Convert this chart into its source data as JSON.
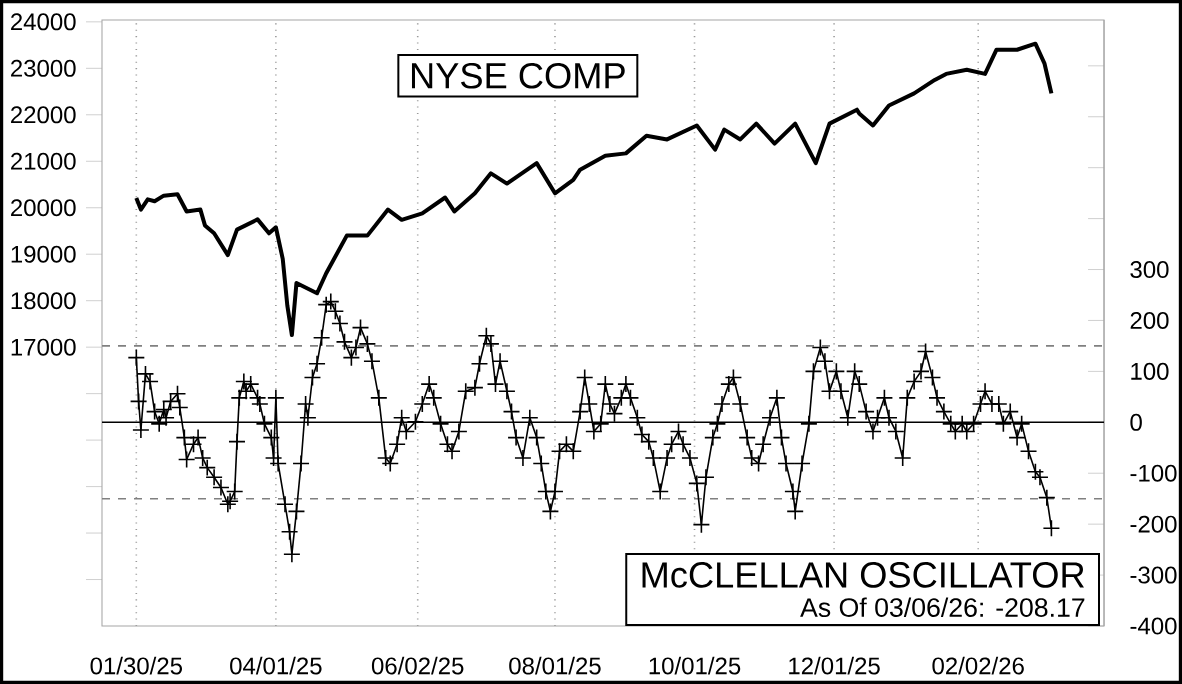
{
  "chart_data": {
    "type": "line",
    "xlim": [
      "2025-01-15",
      "2026-03-29"
    ],
    "xticks": [
      {
        "value": "2025-01-30",
        "label": "01/30/25"
      },
      {
        "value": "2025-04-01",
        "label": "04/01/25"
      },
      {
        "value": "2025-06-02",
        "label": "06/02/25"
      },
      {
        "value": "2025-08-01",
        "label": "08/01/25"
      },
      {
        "value": "2025-10-01",
        "label": "10/01/25"
      },
      {
        "value": "2025-12-01",
        "label": "12/01/25"
      },
      {
        "value": "2026-02-02",
        "label": "02/02/26"
      }
    ],
    "ylim": [
      11000,
      24040
    ],
    "yticks": [
      {
        "value": 12000,
        "label": null
      },
      {
        "value": 13000,
        "label": null
      },
      {
        "value": 14000,
        "label": null
      },
      {
        "value": 15000,
        "label": null
      },
      {
        "value": 16000,
        "label": null
      },
      17000,
      18000,
      19000,
      20000,
      21000,
      22000,
      23000,
      24000
    ],
    "y2lim": [
      -400,
      790
    ],
    "y2ticks": [
      -400,
      -300,
      -200,
      -100,
      0,
      100,
      200,
      300,
      {
        "value": 400,
        "label": null
      },
      {
        "value": 500,
        "label": null
      },
      {
        "value": 600,
        "label": null
      },
      {
        "value": 700,
        "label": null
      }
    ],
    "grid": "x",
    "ref_lines": [
      {
        "axis": "y2",
        "value": 150,
        "color": "#808080",
        "line_style": "dashed"
      },
      {
        "axis": "y2",
        "value": 0,
        "color": "#000000",
        "line_style": "solid"
      },
      {
        "axis": "y2",
        "value": -150,
        "color": "#808080",
        "line_style": "dashed"
      }
    ],
    "annotations": [
      "As Of 03/06/26: -208.17"
    ],
    "series": [
      {
        "name": "NYSE COMP",
        "color": "#000000",
        "marker": "none",
        "x": [
          "2025-01-30",
          "2025-02-01",
          "2025-02-04",
          "2025-02-07",
          "2025-02-11",
          "2025-02-17",
          "2025-02-21",
          "2025-02-27",
          "2025-03-01",
          "2025-03-05",
          "2025-03-11",
          "2025-03-15",
          "2025-03-24",
          "2025-03-29",
          "2025-04-01",
          "2025-04-04",
          "2025-04-06",
          "2025-04-08",
          "2025-04-10",
          "2025-04-19",
          "2025-04-23",
          "2025-05-02",
          "2025-05-11",
          "2025-05-20",
          "2025-05-26",
          "2025-06-04",
          "2025-06-14",
          "2025-06-18",
          "2025-06-27",
          "2025-07-04",
          "2025-07-11",
          "2025-07-24",
          "2025-08-01",
          "2025-08-09",
          "2025-08-12",
          "2025-08-23",
          "2025-09-01",
          "2025-09-10",
          "2025-09-19",
          "2025-10-02",
          "2025-10-10",
          "2025-10-14",
          "2025-10-21",
          "2025-10-28",
          "2025-11-05",
          "2025-11-14",
          "2025-11-23",
          "2025-11-29",
          "2025-12-11",
          "2025-12-12",
          "2025-12-18",
          "2025-12-25",
          "2026-01-05",
          "2026-01-14",
          "2026-01-19",
          "2026-01-28",
          "2026-02-05",
          "2026-02-10",
          "2026-02-19",
          "2026-02-27",
          "2026-03-03",
          "2026-03-06"
        ],
        "values": [
          20210,
          19960,
          20180,
          20140,
          20260,
          20290,
          19920,
          19960,
          19620,
          19450,
          18980,
          19530,
          19750,
          19450,
          19580,
          18900,
          17900,
          17260,
          18380,
          18160,
          18590,
          19400,
          19400,
          19960,
          19740,
          19880,
          20220,
          19920,
          20310,
          20740,
          20520,
          20960,
          20310,
          20600,
          20820,
          21120,
          21170,
          21550,
          21470,
          21770,
          21250,
          21680,
          21470,
          21810,
          21380,
          21810,
          20960,
          21810,
          22110,
          22030,
          21770,
          22200,
          22460,
          22750,
          22880,
          22970,
          22880,
          23400,
          23400,
          23530,
          23100,
          22460
        ]
      },
      {
        "name": "McCLELLAN OSCILLATOR",
        "color": "#000000",
        "marker": "cross",
        "axis": "y2",
        "x": [
          "2025-01-30",
          "2025-01-31",
          "2025-02-01",
          "2025-02-03",
          "2025-02-05",
          "2025-02-07",
          "2025-02-09",
          "2025-02-11",
          "2025-02-12",
          "2025-02-14",
          "2025-02-17",
          "2025-02-18",
          "2025-02-20",
          "2025-02-21",
          "2025-02-24",
          "2025-02-26",
          "2025-02-28",
          "2025-03-02",
          "2025-03-05",
          "2025-03-08",
          "2025-03-11",
          "2025-03-12",
          "2025-03-14",
          "2025-03-15",
          "2025-03-16",
          "2025-03-18",
          "2025-03-19",
          "2025-03-21",
          "2025-03-24",
          "2025-03-25",
          "2025-03-27",
          "2025-03-30",
          "2025-03-31",
          "2025-04-01",
          "2025-04-02",
          "2025-04-05",
          "2025-04-07",
          "2025-04-08",
          "2025-04-10",
          "2025-04-12",
          "2025-04-14",
          "2025-04-15",
          "2025-04-17",
          "2025-04-19",
          "2025-04-21",
          "2025-04-23",
          "2025-04-25",
          "2025-04-27",
          "2025-04-29",
          "2025-05-01",
          "2025-05-04",
          "2025-05-06",
          "2025-05-08",
          "2025-05-11",
          "2025-05-13",
          "2025-05-16",
          "2025-05-19",
          "2025-05-21",
          "2025-05-24",
          "2025-05-26",
          "2025-05-28",
          "2025-06-01",
          "2025-06-04",
          "2025-06-07",
          "2025-06-09",
          "2025-06-12",
          "2025-06-15",
          "2025-06-17",
          "2025-06-20",
          "2025-06-23",
          "2025-06-27",
          "2025-06-29",
          "2025-07-02",
          "2025-07-04",
          "2025-07-06",
          "2025-07-08",
          "2025-07-11",
          "2025-07-13",
          "2025-07-15",
          "2025-07-18",
          "2025-07-21",
          "2025-07-24",
          "2025-07-26",
          "2025-07-28",
          "2025-07-30",
          "2025-08-01",
          "2025-08-03",
          "2025-08-06",
          "2025-08-09",
          "2025-08-12",
          "2025-08-14",
          "2025-08-16",
          "2025-08-18",
          "2025-08-21",
          "2025-08-23",
          "2025-08-25",
          "2025-08-27",
          "2025-08-30",
          "2025-09-01",
          "2025-09-03",
          "2025-09-06",
          "2025-09-08",
          "2025-09-11",
          "2025-09-13",
          "2025-09-16",
          "2025-09-19",
          "2025-09-21",
          "2025-09-24",
          "2025-09-26",
          "2025-09-29",
          "2025-10-02",
          "2025-10-04",
          "2025-10-06",
          "2025-10-09",
          "2025-10-11",
          "2025-10-13",
          "2025-10-16",
          "2025-10-18",
          "2025-10-21",
          "2025-10-24",
          "2025-10-26",
          "2025-10-29",
          "2025-10-31",
          "2025-11-03",
          "2025-11-06",
          "2025-11-08",
          "2025-11-10",
          "2025-11-13",
          "2025-11-14",
          "2025-11-17",
          "2025-11-20",
          "2025-11-22",
          "2025-11-25",
          "2025-11-27",
          "2025-11-29",
          "2025-12-02",
          "2025-12-04",
          "2025-12-07",
          "2025-12-10",
          "2025-12-12",
          "2025-12-15",
          "2025-12-18",
          "2025-12-20",
          "2025-12-23",
          "2025-12-25",
          "2025-12-28",
          "2025-12-31",
          "2026-01-02",
          "2026-01-05",
          "2026-01-08",
          "2026-01-10",
          "2026-01-13",
          "2026-01-15",
          "2026-01-18",
          "2026-01-21",
          "2026-01-23",
          "2026-01-26",
          "2026-01-28",
          "2026-01-31",
          "2026-02-03",
          "2026-02-05",
          "2026-02-08",
          "2026-02-11",
          "2026-02-13",
          "2026-02-16",
          "2026-02-19",
          "2026-02-21",
          "2026-02-24",
          "2026-02-27",
          "2026-03-01",
          "2026-03-04",
          "2026-03-06"
        ],
        "values": [
          127,
          41,
          -15,
          95,
          80,
          21,
          -3,
          25,
          9,
          41,
          56,
          29,
          -30,
          -73,
          -43,
          -30,
          -70,
          -89,
          -108,
          -128,
          -161,
          -155,
          -136,
          -38,
          48,
          80,
          61,
          75,
          48,
          36,
          -3,
          -30,
          -70,
          48,
          -81,
          -161,
          -215,
          -259,
          -175,
          -81,
          36,
          9,
          88,
          115,
          166,
          231,
          237,
          218,
          194,
          158,
          127,
          147,
          186,
          154,
          120,
          48,
          -70,
          -81,
          -43,
          9,
          -18,
          1,
          36,
          75,
          48,
          -3,
          -43,
          -57,
          -18,
          61,
          68,
          115,
          170,
          154,
          75,
          120,
          61,
          21,
          -30,
          -70,
          9,
          -30,
          -81,
          -136,
          -175,
          -136,
          -57,
          -43,
          -57,
          21,
          88,
          36,
          -18,
          -3,
          75,
          36,
          17,
          48,
          75,
          48,
          9,
          -24,
          -38,
          -70,
          -136,
          -70,
          -43,
          -18,
          -43,
          -70,
          -120,
          -201,
          -108,
          -30,
          -3,
          36,
          75,
          88,
          36,
          -30,
          -70,
          -81,
          -43,
          9,
          48,
          -30,
          -81,
          -136,
          -175,
          -81,
          -3,
          100,
          147,
          120,
          61,
          100,
          61,
          9,
          100,
          75,
          21,
          -18,
          9,
          48,
          9,
          -18,
          -70,
          48,
          80,
          100,
          139,
          88,
          48,
          21,
          -3,
          -18,
          -3,
          -18,
          -3,
          36,
          61,
          36,
          36,
          -3,
          21,
          -30,
          -3,
          -57,
          -97,
          -108,
          -148,
          -208
        ]
      }
    ]
  }
}
